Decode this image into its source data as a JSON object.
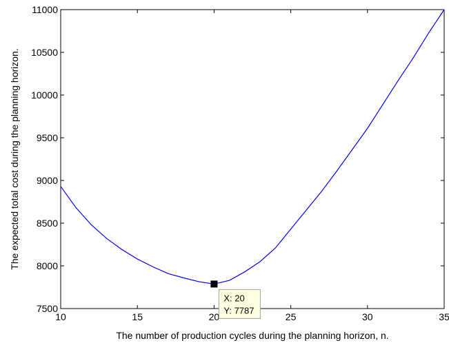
{
  "chart_data": {
    "type": "line",
    "title": "",
    "xlabel": "The number of production cycles during the planning horizon, n.",
    "ylabel": "The expected total cost during the planning horizon.",
    "xlim": [
      10,
      35
    ],
    "ylim": [
      7500,
      11000
    ],
    "xticks": [
      10,
      15,
      20,
      25,
      30,
      35
    ],
    "yticks": [
      7500,
      8000,
      8500,
      9000,
      9500,
      10000,
      10500,
      11000
    ],
    "grid": false,
    "line_color": "#0000ff",
    "series": [
      {
        "x": [
          10,
          11,
          12,
          13,
          14,
          15,
          16,
          17,
          18,
          19,
          20,
          21,
          22,
          23,
          24,
          25,
          26,
          27,
          28,
          29,
          30,
          31,
          32,
          33,
          34,
          35
        ],
        "values": [
          8930,
          8680,
          8480,
          8320,
          8190,
          8080,
          7990,
          7910,
          7860,
          7815,
          7787,
          7830,
          7930,
          8050,
          8210,
          8430,
          8650,
          8870,
          9110,
          9360,
          9610,
          9890,
          10170,
          10440,
          10730,
          11000
        ]
      }
    ],
    "datatip": {
      "x_label": "X: 20",
      "y_label": "Y: 7787",
      "x": 20,
      "y": 7787,
      "background": "#ffffe1"
    }
  }
}
